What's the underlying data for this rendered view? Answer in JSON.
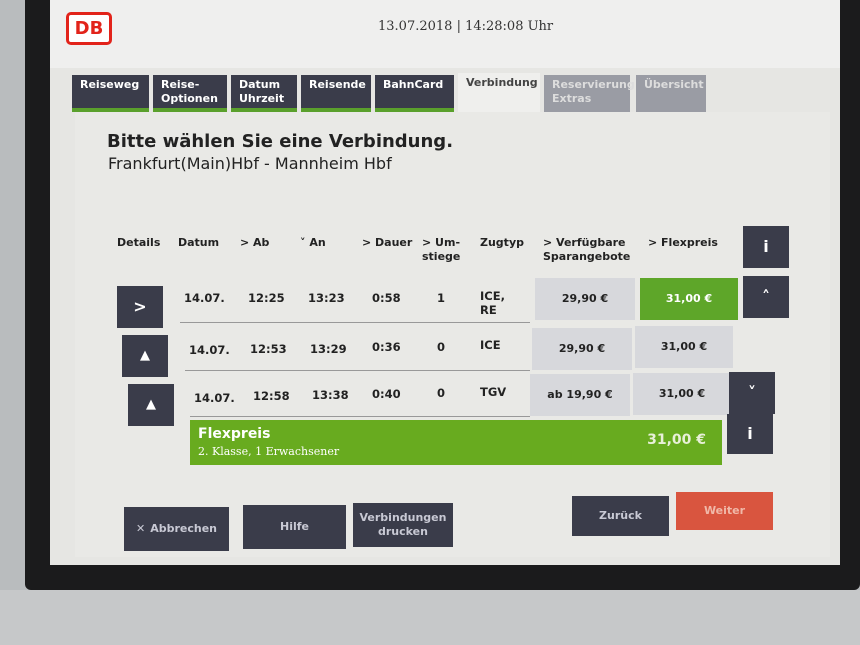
{
  "header": {
    "logo": "DB",
    "datetime": "13.07.2018 | 14:28:08 Uhr"
  },
  "tabs": [
    {
      "label": "Reiseweg"
    },
    {
      "label": "Reise-\nOptionen"
    },
    {
      "label": "Datum\nUhrzeit"
    },
    {
      "label": "Reisende"
    },
    {
      "label": "BahnCard"
    },
    {
      "label": "Verbindung"
    },
    {
      "label": "Reservierung\nExtras"
    },
    {
      "label": "Übersicht"
    }
  ],
  "main": {
    "title": "Bitte wählen Sie eine Verbindung.",
    "route": "Frankfurt(Main)Hbf - Mannheim Hbf"
  },
  "columns": [
    "Details",
    "Datum",
    "> Ab",
    "˅ An",
    "> Dauer",
    "> Um-\nstiege",
    "Zugtyp",
    "> Verfügbare\nSparangebote",
    "> Flexpreis"
  ],
  "rows": [
    {
      "datum": "14.07.",
      "ab": "12:25",
      "an": "13:23",
      "dauer": "0:58",
      "umstiege": "1",
      "zugtyp": "ICE,\nRE",
      "spar": "29,90 €",
      "flex": "31,00 €",
      "icon": "chevron-right"
    },
    {
      "datum": "14.07.",
      "ab": "12:53",
      "an": "13:29",
      "dauer": "0:36",
      "umstiege": "0",
      "zugtyp": "ICE",
      "spar": "29,90 €",
      "flex": "31,00 €",
      "icon": "warning"
    },
    {
      "datum": "14.07.",
      "ab": "12:58",
      "an": "13:38",
      "dauer": "0:40",
      "umstiege": "0",
      "zugtyp": "TGV",
      "spar": "ab 19,90 €",
      "flex": "31,00 €",
      "icon": "warning"
    }
  ],
  "selection": {
    "name": "Flexpreis",
    "detail": "2. Klasse, 1 Erwachsener",
    "price": "31,00 €"
  },
  "buttons": {
    "cancel": "Abbrechen",
    "help": "Hilfe",
    "print": "Verbindungen\ndrucken",
    "back": "Zurück",
    "next": "Weiter"
  },
  "colors": {
    "accent_green": "#5ea629",
    "next_red": "#d9553f",
    "db_red": "#e2231a"
  }
}
